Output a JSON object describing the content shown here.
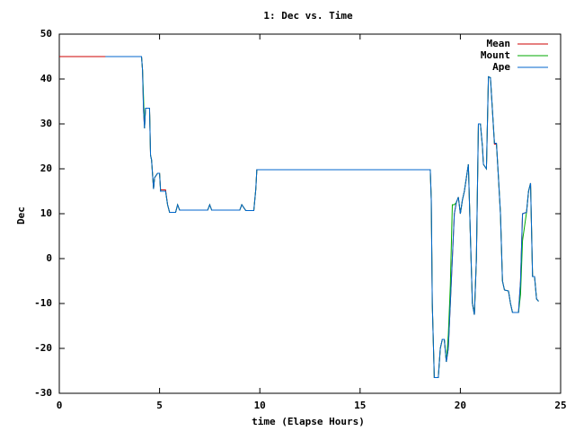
{
  "chart_data": {
    "type": "line",
    "title": "1: Dec vs. Time",
    "x_label": "time (Elapse Hours)",
    "y_label": "Dec",
    "x": [
      0,
      2.3,
      4.1,
      4.15,
      4.2,
      4.25,
      4.3,
      4.5,
      4.55,
      4.6,
      4.7,
      4.75,
      4.9,
      5.0,
      5.05,
      5.3,
      5.4,
      5.5,
      5.8,
      5.9,
      6.0,
      7.4,
      7.5,
      7.6,
      9.0,
      9.1,
      9.3,
      9.7,
      9.8,
      9.85,
      18.5,
      18.55,
      18.6,
      18.7,
      18.9,
      19.0,
      19.1,
      19.2,
      19.3,
      19.4,
      19.5,
      19.6,
      19.7,
      19.8,
      19.9,
      20.0,
      20.1,
      20.2,
      20.3,
      20.4,
      20.5,
      20.6,
      20.7,
      20.8,
      20.9,
      21.0,
      21.1,
      21.15,
      21.3,
      21.4,
      21.5,
      21.6,
      21.7,
      21.8,
      21.9,
      22.0,
      22.1,
      22.2,
      22.4,
      22.5,
      22.6,
      22.9,
      23.0,
      23.1,
      23.3,
      23.4,
      23.5,
      23.6,
      23.7,
      23.8,
      23.9
    ],
    "series": [
      {
        "name": "Mean",
        "color": "#cc0000",
        "values": [
          45,
          45,
          45,
          42,
          33,
          29,
          33.5,
          33.5,
          23,
          22,
          15.5,
          18,
          19,
          19,
          15.3,
          15.3,
          12,
          10.3,
          10.3,
          12,
          10.8,
          10.8,
          12,
          10.8,
          10.8,
          12,
          10.7,
          10.7,
          15.5,
          19.8,
          19.8,
          13,
          -10,
          -26.5,
          -26.5,
          -20,
          -18,
          -18,
          -23,
          -20,
          -10,
          0,
          10,
          12.5,
          13.7,
          10,
          13,
          15,
          18,
          21,
          5,
          -10,
          -12.5,
          0,
          30,
          30,
          25,
          21,
          20,
          40.5,
          40.3,
          33,
          25.5,
          25.5,
          18,
          10,
          -5,
          -7,
          -7.2,
          -10,
          -12,
          -12,
          -5,
          10,
          10.3,
          15,
          16.8,
          -4,
          -4,
          -9,
          -9.5
        ]
      },
      {
        "name": "Mount",
        "color": "#00aa00",
        "values": [
          null,
          45,
          45,
          42,
          36,
          29,
          33.5,
          33.5,
          23,
          22,
          15.5,
          18,
          19,
          19,
          15,
          15,
          12,
          10.3,
          10.3,
          12,
          10.8,
          10.8,
          12,
          10.8,
          10.8,
          12,
          10.7,
          10.7,
          15.5,
          19.8,
          19.8,
          13,
          -10,
          -26.5,
          -26.5,
          -20,
          -18,
          -18,
          -23,
          -17,
          -6,
          12,
          12,
          12.5,
          13.7,
          10,
          13,
          15,
          18,
          21,
          5,
          -10,
          -12.5,
          0,
          30,
          30,
          25,
          21,
          20,
          40.5,
          40.3,
          33,
          25.7,
          25.7,
          18,
          10,
          -5,
          -7,
          -7.2,
          -10,
          -12,
          -12,
          -8,
          4,
          10.3,
          15,
          16.8,
          -4,
          -4,
          -9,
          -9.5
        ]
      },
      {
        "name": "Ape",
        "color": "#0066cc",
        "values": [
          null,
          45,
          45,
          42,
          33,
          29,
          33.5,
          33.5,
          23,
          22,
          15.5,
          18,
          19,
          19,
          15,
          15,
          12,
          10.3,
          10.3,
          12,
          10.8,
          10.8,
          12,
          10.8,
          10.8,
          12,
          10.7,
          10.7,
          15.5,
          19.8,
          19.8,
          13,
          -10,
          -26.5,
          -26.5,
          -20,
          -18,
          -18,
          -23,
          -20,
          -10,
          0,
          10,
          12.5,
          13.7,
          10,
          13,
          15,
          18,
          21,
          5,
          -10,
          -12.5,
          0,
          30,
          30,
          25,
          21,
          20,
          40.5,
          40.3,
          33,
          25.7,
          25.7,
          18,
          10,
          -5,
          -7,
          -7.2,
          -10,
          -12,
          -12,
          -5,
          10,
          10.3,
          15,
          16.8,
          -4,
          -4,
          -9,
          -9.5
        ]
      }
    ],
    "xlim": [
      0,
      25
    ],
    "xticks": [
      0,
      5,
      10,
      15,
      20,
      25
    ],
    "ylim": [
      -30,
      50
    ],
    "yticks": [
      -30,
      -20,
      -10,
      0,
      10,
      20,
      30,
      40,
      50
    ]
  }
}
